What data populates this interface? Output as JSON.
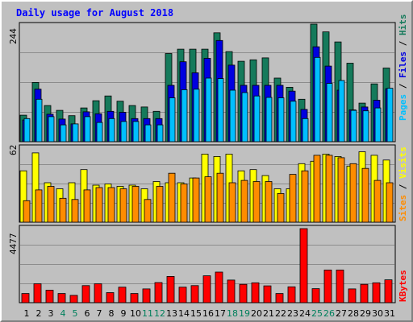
{
  "title": "Daily usage for August 2018",
  "chart_data": [
    {
      "type": "bar",
      "panel": "top",
      "ymax_label": "244",
      "ylim": [
        0,
        244
      ],
      "series": [
        {
          "name": "Hits",
          "color": "#157a5b",
          "values": [
            55,
            123,
            75,
            65,
            54,
            70,
            85,
            95,
            84,
            75,
            72,
            63,
            183,
            192,
            192,
            192,
            226,
            187,
            167,
            170,
            174,
            132,
            113,
            88,
            244,
            228,
            207,
            163,
            80,
            120,
            153
          ]
        },
        {
          "name": "Files",
          "color": "#0000e0",
          "values": [
            45,
            109,
            57,
            47,
            37,
            62,
            58,
            63,
            61,
            48,
            48,
            48,
            117,
            166,
            143,
            173,
            210,
            159,
            117,
            117,
            117,
            117,
            105,
            67,
            197,
            157,
            107,
            66,
            72,
            86,
            110
          ]
        },
        {
          "name": "Pages",
          "color": "#00bfff",
          "values": [
            48,
            88,
            52,
            35,
            37,
            52,
            40,
            48,
            42,
            42,
            35,
            35,
            91,
            108,
            109,
            132,
            131,
            107,
            102,
            95,
            92,
            91,
            84,
            48,
            175,
            121,
            127,
            65,
            64,
            70,
            111
          ]
        }
      ]
    },
    {
      "type": "bar",
      "panel": "middle",
      "ymax_label": "62",
      "ylim": [
        0,
        62
      ],
      "series": [
        {
          "name": "Visits",
          "color": "#ffff00",
          "values": [
            43,
            58,
            33,
            28,
            33,
            44,
            31,
            32,
            30,
            31,
            28,
            34,
            33,
            33,
            37,
            57,
            55,
            57,
            43,
            44,
            39,
            28,
            28,
            49,
            51,
            57,
            55,
            47,
            59,
            56,
            52
          ]
        },
        {
          "name": "Sites",
          "color": "#ff8c00",
          "values": [
            18,
            27,
            30,
            20,
            19,
            27,
            29,
            29,
            28,
            30,
            19,
            30,
            41,
            32,
            37,
            38,
            41,
            33,
            35,
            34,
            34,
            24,
            40,
            43,
            56,
            56,
            54,
            49,
            45,
            35,
            33
          ]
        }
      ]
    },
    {
      "type": "bar",
      "panel": "bottom",
      "ymax_label": "4477",
      "ylim": [
        0,
        4477
      ],
      "series": [
        {
          "name": "KBytes",
          "color": "#ff0000",
          "values": [
            554,
            1144,
            754,
            554,
            443,
            1034,
            1144,
            609,
            941,
            554,
            831,
            1218,
            1588,
            941,
            1034,
            1625,
            1847,
            1367,
            1108,
            1200,
            1016,
            554,
            960,
            4477,
            849,
            1976,
            1976,
            831,
            1108,
            1200,
            1384
          ]
        }
      ]
    }
  ],
  "days": [
    "1",
    "2",
    "3",
    "4",
    "5",
    "6",
    "7",
    "8",
    "9",
    "10",
    "11",
    "12",
    "13",
    "14",
    "15",
    "16",
    "17",
    "18",
    "19",
    "20",
    "21",
    "22",
    "23",
    "24",
    "25",
    "26",
    "27",
    "28",
    "29",
    "30",
    "31"
  ],
  "weekend_days": [
    "4",
    "5",
    "11",
    "12",
    "18",
    "19",
    "25",
    "26"
  ],
  "weekday_color": "#000000",
  "weekend_color": "#00805c",
  "top_legend": {
    "pages": "Pages",
    "files": "Files",
    "hits": "Hits",
    "sep": "/"
  },
  "middle_legend": {
    "sites": "Sites",
    "visits": "Visits",
    "sep": "/"
  },
  "bottom_legend": {
    "kbytes": "KBytes"
  },
  "colors": {
    "background": "#c0c0c0",
    "title": "#0000ff",
    "pages": "#00bfff",
    "files": "#0000e0",
    "hits": "#157a5b",
    "visits": "#ffff00",
    "sites": "#ff8c00",
    "kbytes": "#ff0000"
  }
}
